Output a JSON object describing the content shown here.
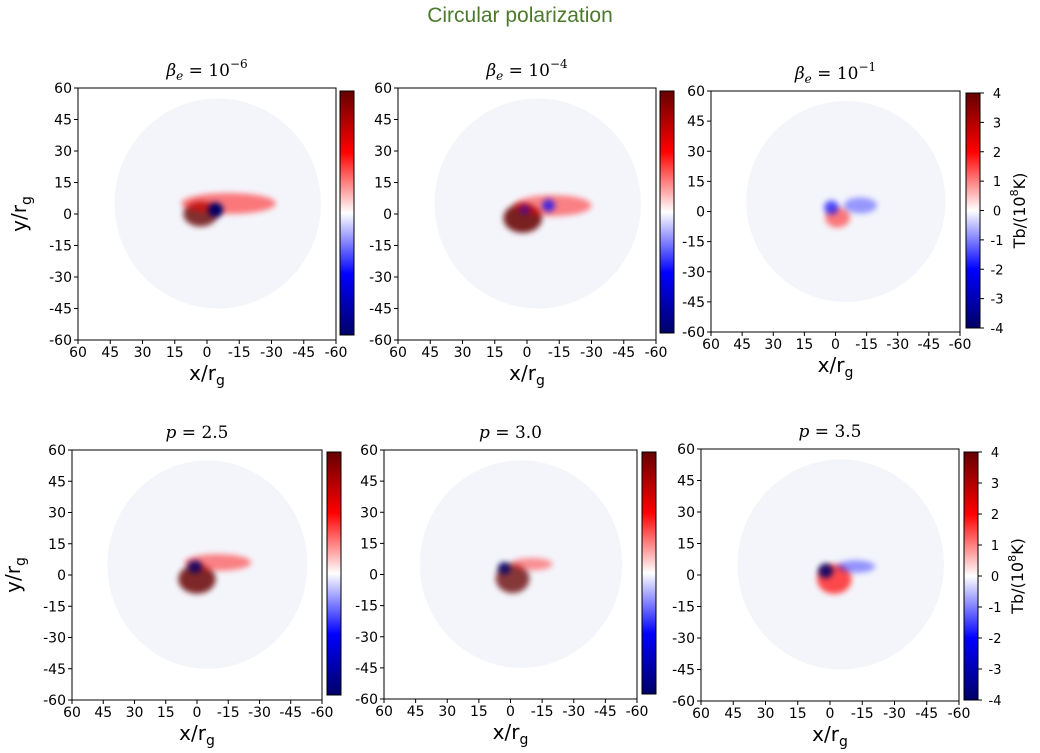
{
  "figure_title": "Circular polarization",
  "colormap": {
    "negative": "#000066",
    "mid_negative": "#0000ff",
    "zero": "#ffffff",
    "mid_positive": "#ff0000",
    "positive": "#660000"
  },
  "chart_data": [
    {
      "type": "heatmap",
      "title_base": "β",
      "title_sub": "e",
      "title_mid": " = 10",
      "title_sup": "−6",
      "xlabel": "x/r",
      "xlabel_sub": "g",
      "ylabel": "y/r",
      "ylabel_sub": "g",
      "xlim": [
        60,
        -60
      ],
      "ylim": [
        -60,
        60
      ],
      "xticks": [
        "60",
        "45",
        "30",
        "15",
        "0",
        "-15",
        "-30",
        "-45",
        "-60"
      ],
      "yticks": [
        "-60",
        "-45",
        "-30",
        "-15",
        "0",
        "15",
        "30",
        "45",
        "60"
      ],
      "colorbar": {
        "range": [
          -4,
          4
        ],
        "ticks": [],
        "label": "",
        "label_sup": ""
      },
      "features": [
        {
          "x": 3,
          "y": 0,
          "rx": 8,
          "ry": 6,
          "value": 2.8
        },
        {
          "x": -10,
          "y": 5,
          "rx": 22,
          "ry": 5,
          "value": 1.0
        },
        {
          "x": -4,
          "y": 2,
          "rx": 3.5,
          "ry": 3.5,
          "value": -4
        }
      ]
    },
    {
      "type": "heatmap",
      "title_base": "β",
      "title_sub": "e",
      "title_mid": " = 10",
      "title_sup": "−4",
      "xlabel": "x/r",
      "xlabel_sub": "g",
      "ylabel": "",
      "ylabel_sub": "",
      "xlim": [
        60,
        -60
      ],
      "ylim": [
        -60,
        60
      ],
      "xticks": [
        "60",
        "45",
        "30",
        "15",
        "0",
        "-15",
        "-30",
        "-45",
        "-60"
      ],
      "yticks": [
        "-60",
        "-45",
        "-30",
        "-15",
        "0",
        "15",
        "30",
        "45",
        "60"
      ],
      "colorbar": {
        "range": [
          -4,
          4
        ],
        "ticks": [],
        "label": "",
        "label_sup": ""
      },
      "features": [
        {
          "x": 2,
          "y": -2,
          "rx": 9,
          "ry": 7,
          "value": 3.2
        },
        {
          "x": -12,
          "y": 4,
          "rx": 18,
          "ry": 5,
          "value": 0.8
        },
        {
          "x": 1,
          "y": 2,
          "rx": 2.5,
          "ry": 2.5,
          "value": -0.5
        },
        {
          "x": -10,
          "y": 4,
          "rx": 3,
          "ry": 3,
          "value": -2.2
        }
      ]
    },
    {
      "type": "heatmap",
      "title_base": "β",
      "title_sub": "e",
      "title_mid": " = 10",
      "title_sup": "−1",
      "xlabel": "x/r",
      "xlabel_sub": "g",
      "ylabel": "",
      "ylabel_sub": "",
      "xlim": [
        60,
        -60
      ],
      "ylim": [
        -60,
        60
      ],
      "xticks": [
        "60",
        "45",
        "30",
        "15",
        "0",
        "-15",
        "-30",
        "-45",
        "-60"
      ],
      "yticks": [
        "-60",
        "-45",
        "-30",
        "-15",
        "0",
        "15",
        "30",
        "45",
        "60"
      ],
      "colorbar": {
        "range": [
          -4,
          4
        ],
        "ticks": [
          "4",
          "3",
          "2",
          "1",
          "0",
          "-1",
          "-2",
          "-3",
          "-4"
        ],
        "label": "Tb/(10",
        "label_sup": "8",
        "label_end": "K)"
      },
      "features": [
        {
          "x": -1,
          "y": -3,
          "rx": 6,
          "ry": 5,
          "value": 1.0
        },
        {
          "x": 2,
          "y": 2,
          "rx": 3.5,
          "ry": 3.5,
          "value": -2.0
        },
        {
          "x": -12,
          "y": 3,
          "rx": 8,
          "ry": 4,
          "value": -0.2
        }
      ]
    },
    {
      "type": "heatmap",
      "title_base": "p",
      "title_sub": "",
      "title_mid": " = 2.5",
      "title_sup": "",
      "xlabel": "x/r",
      "xlabel_sub": "g",
      "ylabel": "y/r",
      "ylabel_sub": "g",
      "xlim": [
        60,
        -60
      ],
      "ylim": [
        -60,
        60
      ],
      "xticks": [
        "60",
        "45",
        "30",
        "15",
        "0",
        "-15",
        "-30",
        "-45",
        "-60"
      ],
      "yticks": [
        "-60",
        "-45",
        "-30",
        "-15",
        "0",
        "15",
        "30",
        "45",
        "60"
      ],
      "colorbar": {
        "range": [
          -4,
          4
        ],
        "ticks": [],
        "label": "",
        "label_sup": ""
      },
      "features": [
        {
          "x": 0,
          "y": -2,
          "rx": 9,
          "ry": 7,
          "value": 3.0
        },
        {
          "x": -10,
          "y": 6,
          "rx": 16,
          "ry": 4,
          "value": 0.8
        },
        {
          "x": 1,
          "y": 4,
          "rx": 3.5,
          "ry": 3,
          "value": -3.0
        }
      ]
    },
    {
      "type": "heatmap",
      "title_base": "p",
      "title_sub": "",
      "title_mid": " = 3.0",
      "title_sup": "",
      "xlabel": "x/r",
      "xlabel_sub": "g",
      "ylabel": "",
      "ylabel_sub": "",
      "xlim": [
        60,
        -60
      ],
      "ylim": [
        -60,
        60
      ],
      "xticks": [
        "60",
        "45",
        "30",
        "15",
        "0",
        "-15",
        "-30",
        "-45",
        "-60"
      ],
      "yticks": [
        "-60",
        "-45",
        "-30",
        "-15",
        "0",
        "15",
        "30",
        "45",
        "60"
      ],
      "colorbar": {
        "range": [
          -4,
          4
        ],
        "ticks": [],
        "label": "",
        "label_sup": ""
      },
      "features": [
        {
          "x": -1,
          "y": -2,
          "rx": 8,
          "ry": 7,
          "value": 2.6
        },
        {
          "x": -10,
          "y": 5,
          "rx": 10,
          "ry": 3,
          "value": 0.4
        },
        {
          "x": 3,
          "y": 3,
          "rx": 3,
          "ry": 3,
          "value": -3.0
        }
      ]
    },
    {
      "type": "heatmap",
      "title_base": "p",
      "title_sub": "",
      "title_mid": " = 3.5",
      "title_sup": "",
      "xlabel": "x/r",
      "xlabel_sub": "g",
      "ylabel": "",
      "ylabel_sub": "",
      "xlim": [
        60,
        -60
      ],
      "ylim": [
        -60,
        60
      ],
      "xticks": [
        "60",
        "45",
        "30",
        "15",
        "0",
        "-15",
        "-30",
        "-45",
        "-60"
      ],
      "yticks": [
        "-60",
        "-45",
        "-30",
        "-15",
        "0",
        "15",
        "30",
        "45",
        "60"
      ],
      "colorbar": {
        "range": [
          -4,
          4
        ],
        "ticks": [
          "4",
          "3",
          "2",
          "1",
          "0",
          "-1",
          "-2",
          "-3",
          "-4"
        ],
        "label": "Tb/(10",
        "label_sup": "8",
        "label_end": "K)"
      },
      "features": [
        {
          "x": -2,
          "y": -2,
          "rx": 8,
          "ry": 7,
          "value": 2.2
        },
        {
          "x": -12,
          "y": 4,
          "rx": 9,
          "ry": 3,
          "value": -0.3
        },
        {
          "x": 2,
          "y": 2,
          "rx": 3.5,
          "ry": 3.5,
          "value": -3.2
        }
      ]
    }
  ]
}
